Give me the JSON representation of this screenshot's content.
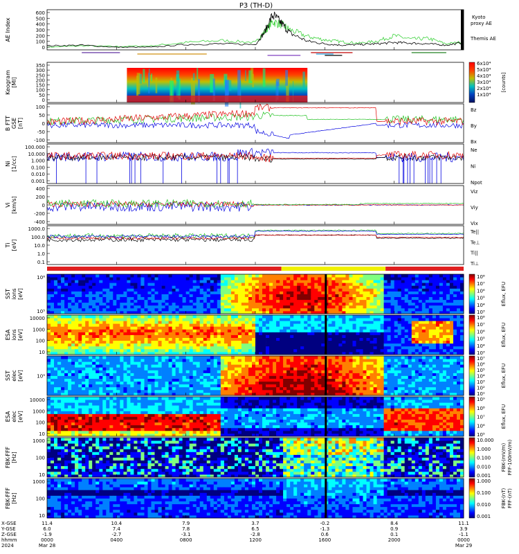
{
  "chart_data": {
    "type": "line",
    "title": "P3 (TH-D)",
    "panels": [
      {
        "id": "ae",
        "ylabel": "AE Index",
        "yticks": [
          "600",
          "500",
          "400",
          "300",
          "200",
          "100",
          "0"
        ],
        "legend": [
          {
            "name": "Kyoto",
            "color": "#2ecc40"
          },
          {
            "name": "proxy AE",
            "color": "#2ecc40"
          },
          {
            "name": "Themis AE",
            "color": "#000000"
          }
        ],
        "ylim": [
          0,
          600
        ],
        "series": [
          {
            "name": "Kyoto proxy AE",
            "color": "#3cd23c",
            "x": [
              0,
              2,
              4,
              6,
              8,
              10,
              12,
              12.5,
              13,
              13.5,
              14,
              15,
              16,
              17,
              18,
              19,
              20,
              21,
              22,
              23,
              24
            ],
            "values": [
              40,
              60,
              50,
              60,
              110,
              140,
              110,
              260,
              420,
              380,
              300,
              200,
              150,
              120,
              100,
              130,
              210,
              160,
              170,
              90,
              120
            ]
          },
          {
            "name": "Themis AE",
            "color": "#000000",
            "x": [
              0,
              2,
              4,
              6,
              8,
              10,
              12,
              12.5,
              13,
              13.5,
              14,
              15,
              16,
              17,
              18,
              19,
              20,
              21,
              22,
              23,
              24
            ],
            "values": [
              60,
              70,
              40,
              40,
              80,
              90,
              80,
              250,
              520,
              400,
              250,
              130,
              90,
              70,
              80,
              90,
              110,
              100,
              90,
              70,
              110
            ]
          }
        ]
      },
      {
        "id": "keo",
        "ylabel": "Keogram",
        "ylabel2": "[Ml]",
        "yticks": [
          "350",
          "300",
          "250",
          "200",
          "150",
          "100",
          "50",
          "0"
        ],
        "colorbar": {
          "label": "[counts]",
          "ticks": [
            "6x10⁴",
            "5x10⁴",
            "4x10⁴",
            "3x10⁴",
            "2x10⁴",
            "1x10⁴"
          ]
        }
      },
      {
        "id": "b",
        "ylabel": "B FTT",
        "ylabel2": "GSE",
        "unit": "[nT]",
        "yticks": [
          "100",
          "50",
          "0",
          "-50",
          "-100"
        ],
        "ylim": [
          -100,
          100
        ],
        "legend": [
          {
            "name": "Bz",
            "color": "#e00000"
          },
          {
            "name": "By",
            "color": "#20c020"
          },
          {
            "name": "Bx",
            "color": "#0000e0"
          }
        ]
      },
      {
        "id": "n",
        "ylabel": "Ni",
        "unit": "[1/cc]",
        "yticks": [
          "100.000",
          "10.000",
          "1.000",
          "0.100",
          "0.010",
          "0.001"
        ],
        "legend": [
          {
            "name": "Ne",
            "color": "#e00000"
          },
          {
            "name": "Ni",
            "color": "#000000"
          },
          {
            "name": "Npot",
            "color": "#0000e0"
          }
        ]
      },
      {
        "id": "v",
        "ylabel": "Vi",
        "unit": "[km/s]",
        "yticks": [
          "400",
          "200",
          "0",
          "-200",
          "-400"
        ],
        "legend": [
          {
            "name": "Viz",
            "color": "#e00000"
          },
          {
            "name": "Viy",
            "color": "#20c020"
          },
          {
            "name": "Vix",
            "color": "#0000e0"
          }
        ]
      },
      {
        "id": "t",
        "ylabel": "Ti",
        "unit": "[eV]",
        "yticks": [
          "1000.0",
          "100.0",
          "10.0",
          "1.0",
          "0.1"
        ],
        "legend": [
          {
            "name": "Te||",
            "color": "#000000"
          },
          {
            "name": "Te⊥",
            "color": "#e00000"
          },
          {
            "name": "Ti||",
            "color": "#20c020"
          },
          {
            "name": "Ti⊥",
            "color": "#0000e0"
          }
        ]
      },
      {
        "id": "sste",
        "ylabel": "SST",
        "ylabel2": "ions",
        "unit": "[eV]",
        "yticks": [
          "10⁶",
          "10⁵"
        ],
        "colorbar": {
          "label": "Eflux, EFU",
          "ticks": [
            "10⁸",
            "10⁷",
            "10⁶",
            "10⁵",
            "10⁴",
            "10³"
          ]
        }
      },
      {
        "id": "esai",
        "ylabel": "ESA",
        "ylabel2": "ions",
        "unit": "[eV]",
        "yticks": [
          "10000",
          "1000",
          "100",
          "10"
        ],
        "colorbar": {
          "label": "Eflux, EFU",
          "ticks": [
            "10⁸",
            "10⁷",
            "10⁶",
            "10⁵",
            "10⁴",
            "10³"
          ]
        }
      },
      {
        "id": "sste2",
        "ylabel": "SST",
        "ylabel2": "elec",
        "unit": "[eV]",
        "yticks": [
          "10⁵"
        ],
        "colorbar": {
          "label": "Eflux, EFU",
          "ticks": [
            "10⁷",
            "10⁶",
            "10⁵",
            "10⁴",
            "10³",
            "10²",
            "10¹"
          ]
        }
      },
      {
        "id": "esae",
        "ylabel": "ESA",
        "ylabel2": "elec",
        "unit": "[eV]",
        "yticks": [
          "10000",
          "1000",
          "100",
          "10"
        ],
        "colorbar": {
          "label": "Eflux, EFU",
          "ticks": [
            "10⁹",
            "10⁸",
            "10⁷",
            "10⁶",
            "10⁵"
          ]
        }
      },
      {
        "id": "fbk1",
        "ylabel": "FBK-FFF",
        "unit": "[Hz]",
        "yticks": [
          "1000",
          "100",
          "10"
        ],
        "colorbar": {
          "label": "FBK-(mV/m)",
          "label2": "FFF-100mV/m)",
          "ticks": [
            "10.000",
            "1.000",
            "0.100",
            "0.010",
            "0.001"
          ]
        }
      },
      {
        "id": "fbk2",
        "ylabel": "FBK-FFF",
        "unit": "[Hz]",
        "yticks": [
          "1000",
          "100",
          "10"
        ],
        "colorbar": {
          "label": "FBK-(nT)",
          "label2": "FFF-(nT)",
          "ticks": [
            "1.000",
            "0.100",
            "0.010",
            "0.001"
          ]
        }
      }
    ],
    "xaxis": {
      "row_labels": [
        "X-GSE",
        "Y-GSE",
        "Z-GSE",
        "hhmm",
        "2024"
      ],
      "ticks": [
        {
          "t": 0,
          "vals": [
            "11.4",
            "6.0",
            "-1.9",
            "0000",
            "Mar 28"
          ]
        },
        {
          "t": 4,
          "vals": [
            "10.4",
            "7.4",
            "-2.7",
            "0400",
            ""
          ]
        },
        {
          "t": 8,
          "vals": [
            "7.9",
            "7.8",
            "-3.1",
            "0800",
            ""
          ]
        },
        {
          "t": 12,
          "vals": [
            "3.7",
            "6.5",
            "-2.8",
            "1200",
            ""
          ]
        },
        {
          "t": 16,
          "vals": [
            "-0.2",
            "-1.3",
            "0.6",
            "1600",
            ""
          ]
        },
        {
          "t": 20,
          "vals": [
            "8.4",
            "0.9",
            "0.1",
            "2000",
            ""
          ]
        },
        {
          "t": 24,
          "vals": [
            "11.1",
            "3.9",
            "-1.1",
            "0000",
            "Mar 29"
          ]
        }
      ]
    },
    "colors": {
      "frame": "#000000",
      "mode_bar_slow": "#e02020",
      "mode_bar_fast": "#f0f000"
    }
  }
}
